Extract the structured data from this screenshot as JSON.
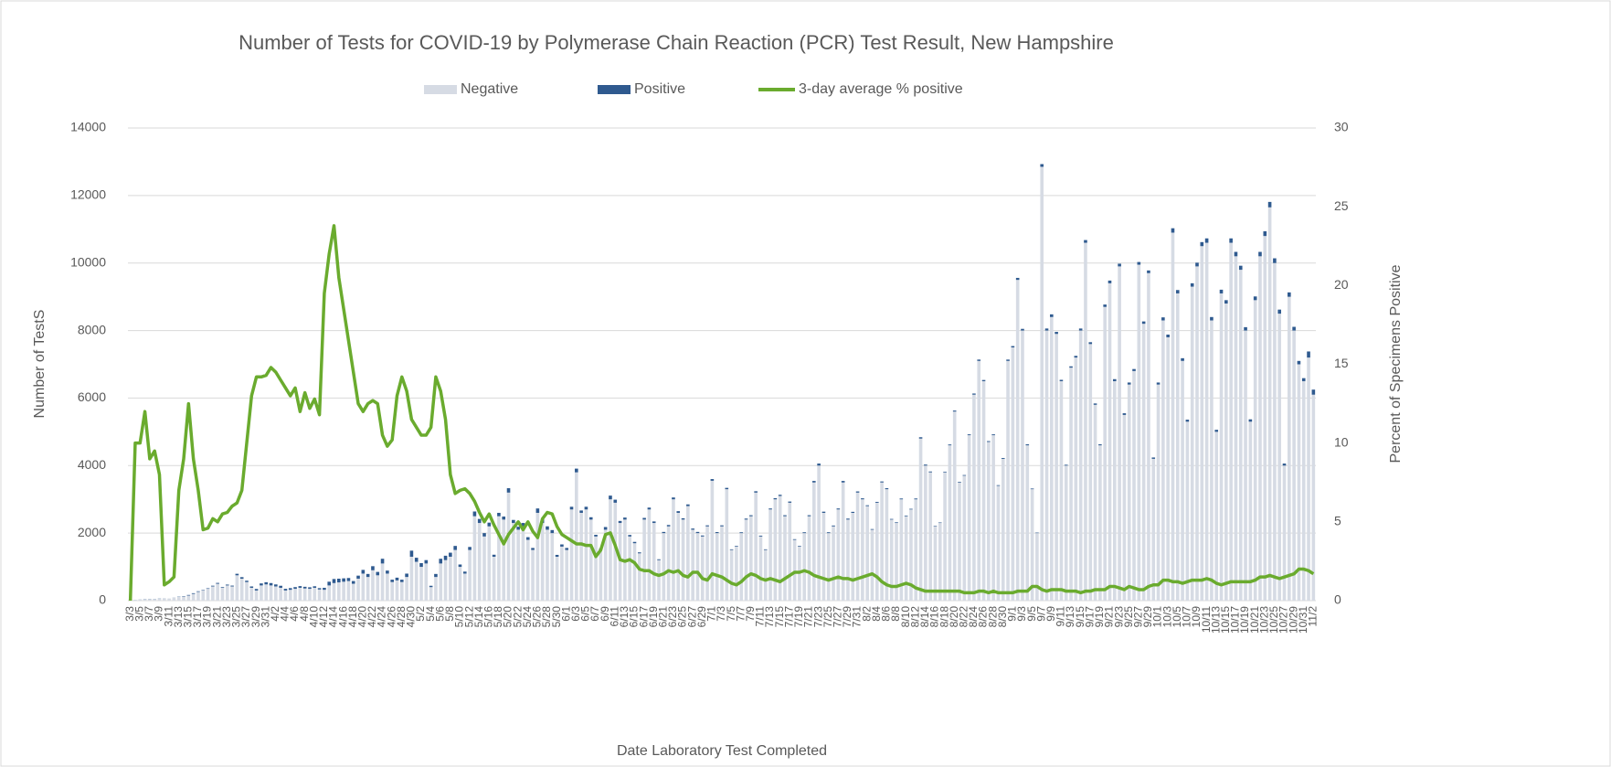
{
  "chart_data": {
    "type": "bar",
    "stacked": true,
    "title": "Number of Tests for COVID-19 by Polymerase Chain Reaction (PCR) Test Result, New Hampshire",
    "x_label": "Date Laboratory Test Completed",
    "y_label": "Number of TestS",
    "y2_label": "Percent of Specimens Positive",
    "legend": "top",
    "ylim": [
      0,
      14000
    ],
    "yticks": [
      0,
      2000,
      4000,
      6000,
      8000,
      10000,
      12000,
      14000
    ],
    "y2lim": [
      0,
      30
    ],
    "y2ticks": [
      0,
      5,
      10,
      15,
      20,
      25,
      30
    ],
    "categories": [
      "3/3",
      null,
      "3/5",
      null,
      "3/7",
      null,
      "3/9",
      null,
      "3/11",
      null,
      "3/13",
      null,
      "3/15",
      null,
      "3/17",
      null,
      "3/19",
      null,
      "3/21",
      null,
      "3/23",
      null,
      "3/25",
      null,
      "3/27",
      null,
      "3/29",
      null,
      "3/31",
      null,
      "4/2",
      null,
      "4/4",
      null,
      "4/6",
      null,
      "4/8",
      null,
      "4/10",
      null,
      "4/12",
      null,
      "4/14",
      null,
      "4/16",
      null,
      "4/18",
      null,
      "4/20",
      null,
      "4/22",
      null,
      "4/24",
      null,
      "4/26",
      null,
      "4/28",
      null,
      "4/30",
      null,
      "5/2",
      null,
      "5/4",
      null,
      "5/6",
      null,
      "5/8",
      null,
      "5/10",
      null,
      "5/12",
      null,
      "5/14",
      null,
      "5/16",
      null,
      "5/18",
      null,
      "5/20",
      null,
      "5/22",
      null,
      "5/24",
      null,
      "5/26",
      null,
      "5/28",
      null,
      "5/30",
      null,
      "6/1",
      null,
      "6/3",
      null,
      "6/5",
      null,
      "6/7",
      null,
      "6/9",
      null,
      "6/11",
      null,
      "6/13",
      null,
      "6/15",
      null,
      "6/17",
      null,
      "6/19",
      null,
      "6/21",
      null,
      "6/23",
      null,
      "6/25",
      null,
      "6/27",
      null,
      "6/29",
      null,
      "7/1",
      null,
      "7/3",
      null,
      "7/5",
      null,
      "7/7",
      null,
      "7/9",
      null,
      "7/11",
      null,
      "7/13",
      null,
      "7/15",
      null,
      "7/17",
      null,
      "7/19",
      null,
      "7/21",
      null,
      "7/23",
      null,
      "7/25",
      null,
      "7/27",
      null,
      "7/29",
      null,
      "7/31",
      null,
      "8/2",
      null,
      "8/4",
      null,
      "8/6",
      null,
      "8/8",
      null,
      "8/10",
      null,
      "8/12",
      null,
      "8/14",
      null,
      "8/16",
      null,
      "8/18",
      null,
      "8/20",
      null,
      "8/22",
      null,
      "8/24",
      null,
      "8/26",
      null,
      "8/28",
      null,
      "8/30",
      null,
      "9/1",
      null,
      "9/3",
      null,
      "9/5",
      null,
      "9/7",
      null,
      "9/9",
      null,
      "9/11",
      null,
      "9/13",
      null,
      "9/15",
      null,
      "9/17",
      null,
      "9/19",
      null,
      "9/21",
      null,
      "9/23",
      null,
      "9/25",
      null,
      "9/27",
      null,
      "9/29",
      null,
      "10/1",
      null,
      "10/3",
      null,
      "10/5",
      null,
      "10/7",
      null,
      "10/9",
      null,
      "10/11",
      null,
      "10/13",
      null,
      "10/15",
      null,
      "10/17",
      null,
      "10/19",
      null,
      "10/21",
      null,
      "10/23",
      null,
      "10/25",
      null,
      "10/27",
      null,
      "10/29",
      null,
      "10/31",
      null,
      "11/2"
    ],
    "series": [
      {
        "name": "Negative",
        "type": "bar",
        "color": "#d6dbe4",
        "values": [
          10,
          20,
          30,
          40,
          50,
          40,
          60,
          70,
          60,
          90,
          110,
          120,
          150,
          200,
          260,
          300,
          350,
          420,
          500,
          380,
          450,
          420,
          750,
          650,
          550,
          380,
          300,
          450,
          480,
          450,
          420,
          380,
          300,
          320,
          350,
          380,
          360,
          350,
          380,
          330,
          320,
          450,
          520,
          540,
          560,
          580,
          500,
          650,
          800,
          700,
          900,
          750,
          1100,
          800,
          550,
          600,
          550,
          700,
          1300,
          1150,
          1000,
          1100,
          400,
          700,
          1100,
          1200,
          1300,
          1500,
          1000,
          800,
          1500,
          2500,
          2300,
          1900,
          2200,
          1300,
          2500,
          2400,
          3200,
          2300,
          2100,
          2200,
          1800,
          1500,
          2600,
          2300,
          2100,
          2000,
          1300,
          1600,
          1500,
          2700,
          3800,
          2600,
          2700,
          2400,
          1900,
          1500,
          2100,
          3000,
          2900,
          2300,
          2400,
          1900,
          1700,
          1400,
          2400,
          2700,
          2300,
          1200,
          2000,
          2200,
          3000,
          2600,
          2400,
          2800,
          2100,
          2000,
          1900,
          2200,
          3550,
          2000,
          2200,
          3300,
          1500,
          1600,
          2000,
          2400,
          2500,
          3200,
          1900,
          1500,
          2700,
          3000,
          3100,
          2500,
          2900,
          1800,
          1600,
          2000,
          2500,
          3500,
          4000,
          2600,
          2000,
          2200,
          2700,
          3500,
          2400,
          2600,
          3200,
          3000,
          2800,
          2100,
          2900,
          3500,
          3300,
          2400,
          2300,
          3000,
          2500,
          2700,
          3000,
          4800,
          4000,
          3800,
          2200,
          2300,
          3800,
          4600,
          5600,
          3500,
          3700,
          4900,
          6100,
          7100,
          6500,
          4700,
          4900,
          3400,
          4200,
          7100,
          7500,
          9500,
          8000,
          4600,
          3300,
          2000,
          12850,
          8000,
          8400,
          7900,
          6500,
          4000,
          6900,
          7200,
          8000,
          10600,
          7600,
          5800,
          4600,
          8700,
          9400,
          6500,
          9900,
          5500,
          6400,
          6800,
          9950,
          8200,
          9700,
          4200,
          6400,
          8300,
          7800,
          10900,
          9100,
          7100,
          5300,
          9300,
          9900,
          10500,
          10600,
          8300,
          5000,
          9100,
          8800,
          10600,
          10200,
          9800,
          8000,
          5300,
          8900,
          10200,
          10800,
          11650,
          10000,
          8500,
          4000,
          9000,
          8000,
          7000,
          6500,
          7200,
          6100
        ]
      },
      {
        "name": "Positive",
        "type": "bar",
        "color": "#2f5a8f",
        "values": [
          0,
          2,
          3,
          5,
          4,
          5,
          5,
          1,
          1,
          2,
          8,
          12,
          18,
          20,
          18,
          14,
          16,
          22,
          25,
          20,
          25,
          25,
          45,
          45,
          40,
          40,
          45,
          60,
          65,
          70,
          60,
          60,
          50,
          50,
          50,
          50,
          50,
          45,
          45,
          40,
          60,
          110,
          120,
          110,
          100,
          90,
          80,
          90,
          110,
          90,
          120,
          100,
          140,
          90,
          70,
          80,
          70,
          100,
          180,
          120,
          110,
          100,
          40,
          90,
          140,
          130,
          120,
          120,
          70,
          60,
          90,
          140,
          120,
          100,
          110,
          60,
          100,
          90,
          130,
          90,
          90,
          100,
          80,
          60,
          130,
          120,
          100,
          90,
          55,
          65,
          60,
          80,
          110,
          70,
          80,
          70,
          50,
          45,
          80,
          110,
          90,
          60,
          60,
          45,
          40,
          30,
          50,
          55,
          45,
          25,
          35,
          40,
          55,
          50,
          40,
          50,
          35,
          35,
          30,
          30,
          50,
          30,
          30,
          40,
          20,
          20,
          25,
          30,
          30,
          40,
          25,
          20,
          30,
          35,
          35,
          30,
          35,
          20,
          20,
          25,
          30,
          45,
          60,
          35,
          25,
          25,
          30,
          45,
          30,
          30,
          35,
          30,
          25,
          20,
          25,
          30,
          30,
          20,
          20,
          25,
          20,
          20,
          25,
          40,
          30,
          25,
          15,
          15,
          20,
          25,
          30,
          20,
          20,
          25,
          35,
          40,
          35,
          25,
          25,
          20,
          25,
          40,
          40,
          60,
          50,
          30,
          20,
          15,
          80,
          60,
          80,
          60,
          40,
          25,
          40,
          50,
          60,
          80,
          55,
          40,
          30,
          70,
          80,
          60,
          80,
          50,
          60,
          60,
          80,
          70,
          80,
          40,
          60,
          90,
          80,
          130,
          100,
          80,
          60,
          100,
          110,
          120,
          130,
          100,
          60,
          110,
          100,
          130,
          130,
          120,
          100,
          70,
          110,
          130,
          140,
          160,
          140,
          120,
          60,
          130,
          110,
          100,
          90,
          180,
          150
        ]
      },
      {
        "name": "3-day average % positive",
        "type": "line",
        "axis": "y2",
        "color": "#6aab2e",
        "values": [
          0,
          10,
          10,
          12,
          9,
          9.5,
          8,
          1,
          1.2,
          1.5,
          7,
          9,
          12.5,
          9,
          7,
          4.5,
          4.6,
          5.2,
          5,
          5.5,
          5.6,
          6,
          6.2,
          7,
          10,
          13,
          14.2,
          14.2,
          14.3,
          14.8,
          14.5,
          14,
          13.5,
          13,
          13.5,
          12,
          13.2,
          12.2,
          12.8,
          11.8,
          19.5,
          22,
          23.8,
          20.5,
          18.5,
          16.5,
          14.5,
          12.5,
          12,
          12.5,
          12.7,
          12.5,
          10.5,
          9.8,
          10.2,
          13,
          14.2,
          13.3,
          11.5,
          11,
          10.5,
          10.5,
          11,
          14.2,
          13.3,
          11.5,
          8,
          6.8,
          7,
          7.1,
          6.8,
          6.3,
          5.6,
          5,
          5.5,
          4.8,
          4.2,
          3.6,
          4.2,
          4.6,
          5,
          4.5,
          5,
          4.4,
          4,
          5.2,
          5.6,
          5.5,
          4.7,
          4.2,
          4,
          3.8,
          3.6,
          3.6,
          3.5,
          3.5,
          2.8,
          3.2,
          4.2,
          4.3,
          3.5,
          2.6,
          2.5,
          2.6,
          2.4,
          2,
          1.9,
          1.9,
          1.7,
          1.6,
          1.7,
          1.9,
          1.8,
          1.9,
          1.6,
          1.5,
          1.8,
          1.8,
          1.4,
          1.3,
          1.7,
          1.6,
          1.5,
          1.3,
          1.1,
          1,
          1.2,
          1.5,
          1.7,
          1.6,
          1.4,
          1.3,
          1.4,
          1.3,
          1.2,
          1.4,
          1.6,
          1.8,
          1.8,
          1.9,
          1.8,
          1.6,
          1.5,
          1.4,
          1.3,
          1.4,
          1.5,
          1.4,
          1.4,
          1.3,
          1.4,
          1.5,
          1.6,
          1.7,
          1.5,
          1.2,
          1,
          0.9,
          0.9,
          1,
          1.1,
          1,
          0.8,
          0.7,
          0.6,
          0.6,
          0.6,
          0.6,
          0.6,
          0.6,
          0.6,
          0.6,
          0.5,
          0.5,
          0.5,
          0.6,
          0.6,
          0.5,
          0.6,
          0.5,
          0.5,
          0.5,
          0.5,
          0.6,
          0.6,
          0.6,
          0.9,
          0.9,
          0.7,
          0.6,
          0.7,
          0.7,
          0.7,
          0.6,
          0.6,
          0.6,
          0.5,
          0.6,
          0.6,
          0.7,
          0.7,
          0.7,
          0.9,
          0.9,
          0.8,
          0.7,
          0.9,
          0.8,
          0.7,
          0.7,
          0.9,
          1,
          1,
          1.3,
          1.3,
          1.2,
          1.2,
          1.1,
          1.2,
          1.3,
          1.3,
          1.3,
          1.4,
          1.3,
          1.1,
          1,
          1.1,
          1.2,
          1.2,
          1.2,
          1.2,
          1.2,
          1.3,
          1.5,
          1.5,
          1.6,
          1.5,
          1.4,
          1.5,
          1.6,
          1.7,
          2,
          2,
          1.9,
          1.7
        ]
      }
    ]
  }
}
